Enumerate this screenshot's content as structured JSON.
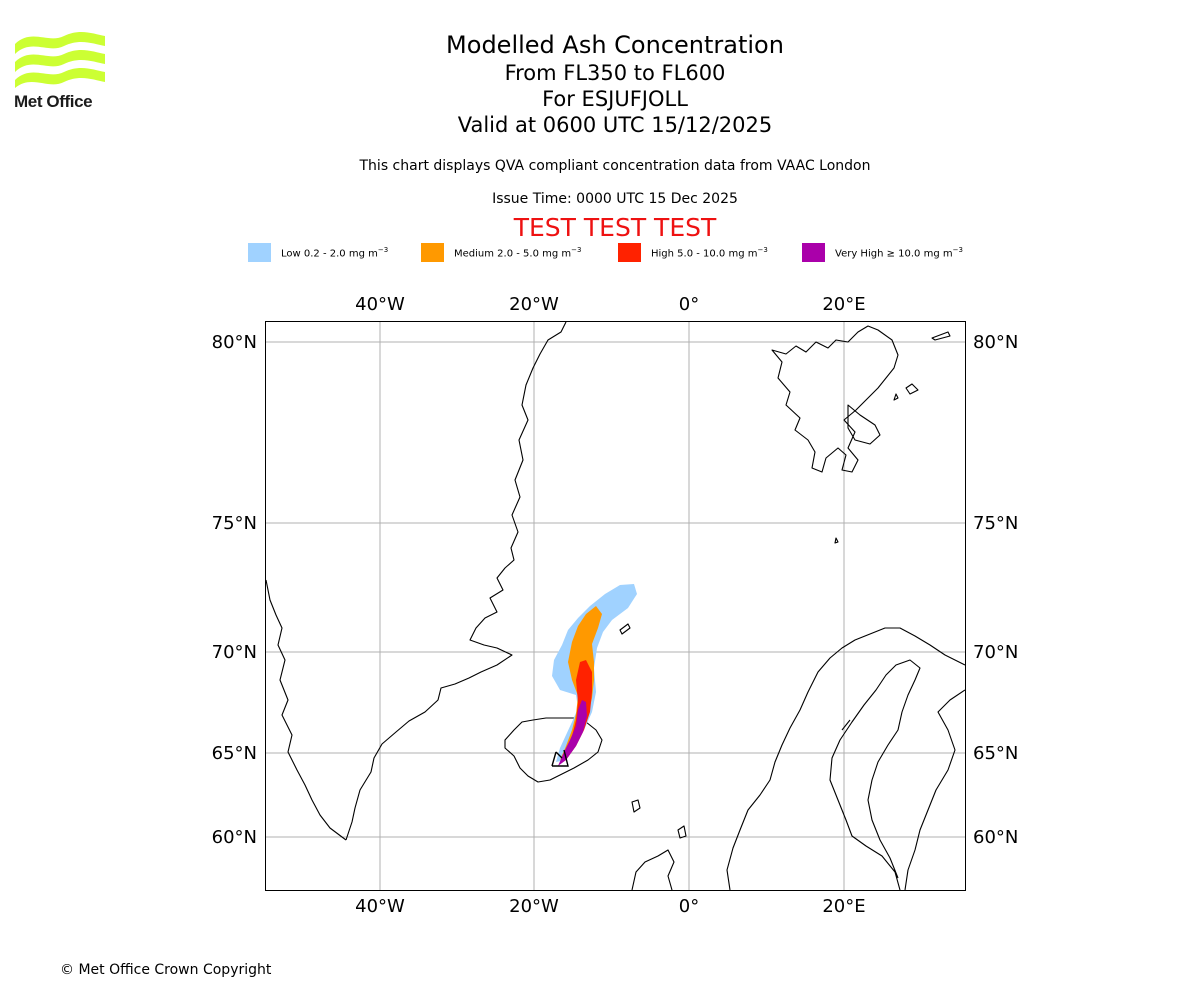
{
  "logo": {
    "text": "Met Office",
    "color": "#ccff33"
  },
  "title": {
    "main": "Modelled Ash Concentration",
    "levels": "From FL350 to FL600",
    "volcano": "For ESJUFJOLL",
    "valid": "Valid at 0600 UTC 15/12/2025"
  },
  "subtitle": "This chart displays QVA compliant concentration data from VAAC London",
  "issue_time": "Issue Time: 0000 UTC 15 Dec 2025",
  "test_banner": "TEST TEST TEST",
  "legend": [
    {
      "label": "Low 0.2 - 2.0 mg m",
      "color": "#a0d2ff"
    },
    {
      "label": "Medium 2.0 - 5.0 mg m",
      "color": "#ff9900"
    },
    {
      "label": "High 5.0 - 10.0 mg m",
      "color": "#ff2200"
    },
    {
      "label": "Very High ≥ 10.0 mg m",
      "color": "#aa00aa"
    }
  ],
  "legend_unit_exponent": "−3",
  "axes": {
    "longitude_labels": [
      "40°W",
      "20°W",
      "0°",
      "20°E"
    ],
    "latitude_labels": [
      "80°N",
      "75°N",
      "70°N",
      "65°N",
      "60°N"
    ]
  },
  "copyright": "© Met Office Crown Copyright"
}
